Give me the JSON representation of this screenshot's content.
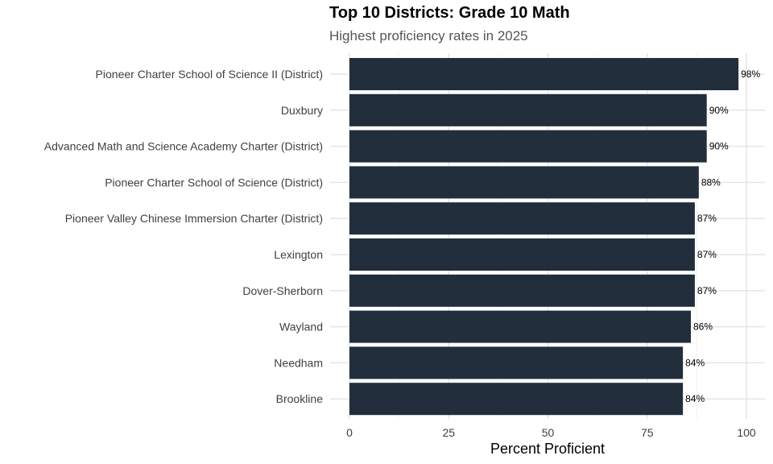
{
  "title": "Top 10 Districts: Grade 10 Math",
  "subtitle": "Highest proficiency rates in 2025",
  "chart_data": {
    "type": "bar",
    "orientation": "horizontal",
    "title": "Top 10 Districts: Grade 10 Math",
    "subtitle": "Highest proficiency rates in 2025",
    "xlabel": "Percent Proficient",
    "ylabel": "",
    "xlim": [
      0,
      100
    ],
    "x_ticks": [
      0,
      25,
      50,
      75,
      100
    ],
    "grid": true,
    "legend": "none",
    "bar_color": "#222e3c",
    "categories": [
      "Pioneer Charter School of Science II (District)",
      "Duxbury",
      "Advanced Math and Science Academy Charter (District)",
      "Pioneer Charter School of Science (District)",
      "Pioneer Valley Chinese Immersion Charter (District)",
      "Lexington",
      "Dover-Sherborn",
      "Wayland",
      "Needham",
      "Brookline"
    ],
    "values": [
      98,
      90,
      90,
      88,
      87,
      87,
      87,
      86,
      84,
      84
    ],
    "data_labels": [
      "98%",
      "90%",
      "90%",
      "88%",
      "87%",
      "87%",
      "87%",
      "86%",
      "84%",
      "84%"
    ]
  }
}
